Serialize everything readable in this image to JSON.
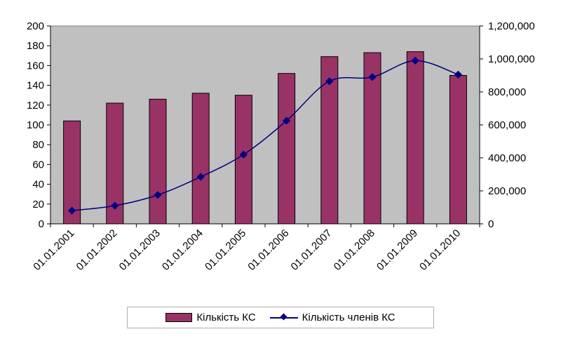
{
  "chart_data": {
    "type": "bar",
    "categories": [
      "01.01.2001",
      "01.01.2002",
      "01.01.2003",
      "01.01.2004",
      "01.01.2005",
      "01.01.2006",
      "01.01.2007",
      "01.01.2008",
      "01.01.2009",
      "01.01.2010"
    ],
    "series": [
      {
        "name": "Кількість КС",
        "type": "bar",
        "axis": "left",
        "values": [
          104,
          122,
          126,
          132,
          130,
          152,
          169,
          173,
          174,
          150
        ]
      },
      {
        "name": "Кількість членів КС",
        "type": "line",
        "axis": "right",
        "values": [
          80000,
          110000,
          175000,
          285000,
          420000,
          625000,
          865000,
          890000,
          990000,
          905000
        ]
      }
    ],
    "y_left": {
      "min": 0,
      "max": 200,
      "step": 20,
      "ticks": [
        "0",
        "20",
        "40",
        "60",
        "80",
        "100",
        "120",
        "140",
        "160",
        "180",
        "200"
      ]
    },
    "y_right": {
      "min": 0,
      "max": 1200000,
      "step": 200000,
      "ticks": [
        "0",
        "200,000",
        "400,000",
        "600,000",
        "800,000",
        "1,000,000",
        "1,200,000"
      ]
    },
    "colors": {
      "bar": "#993366",
      "line": "#000080",
      "plot_bg": "#c0c0c0"
    },
    "legend_position": "bottom",
    "grid": false
  }
}
